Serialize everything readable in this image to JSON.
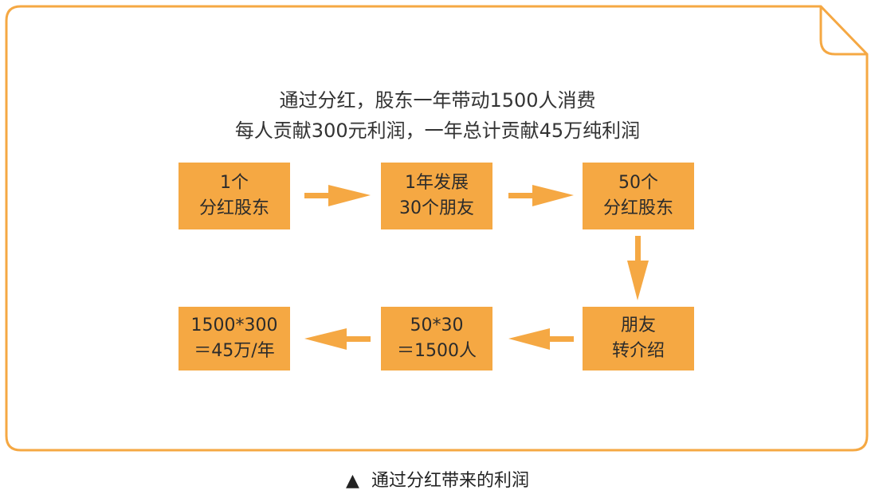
{
  "headline": {
    "line1": "通过分红，股东一年带动1500人消费",
    "line2": "每人贡献300元利润，一年总计贡献45万纯利润"
  },
  "boxes": [
    {
      "line1": "1个",
      "line2": "分红股东"
    },
    {
      "line1": "1年发展",
      "line2": "30个朋友"
    },
    {
      "line1": "50个",
      "line2": "分红股东"
    },
    {
      "line1": "朋友",
      "line2": "转介绍"
    },
    {
      "line1": "50*30",
      "line2": "＝1500人"
    },
    {
      "line1": "1500*300",
      "line2": "＝45万/年"
    }
  ],
  "caption": {
    "marker": "▲",
    "text": "通过分红带来的利润"
  },
  "colors": {
    "accent": "#f5a843",
    "frame": "#f5a843"
  }
}
